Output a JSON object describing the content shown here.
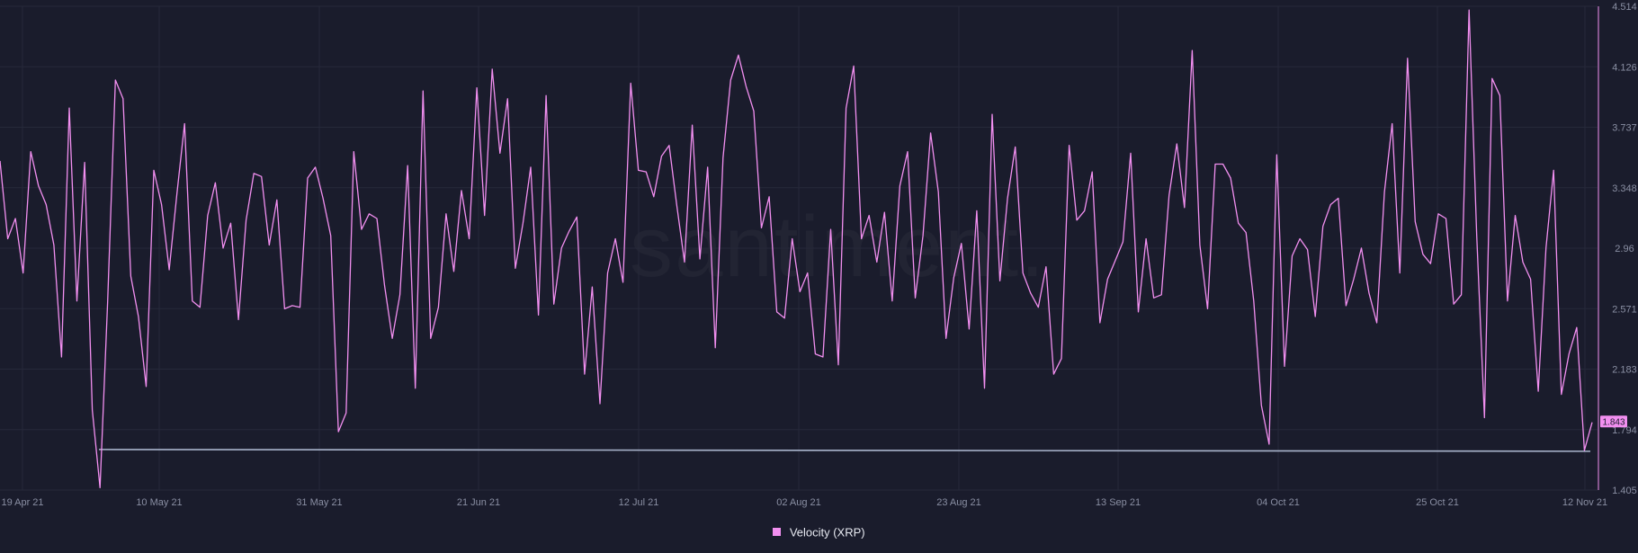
{
  "colors": {
    "background": "#1a1c2c",
    "series": "#f28ff0",
    "baseline": "#a9b4cc",
    "grid": "#26293a",
    "tick_text": "#8a8fa3",
    "badge_bg": "#f28ff0",
    "badge_text": "#1a1c2c"
  },
  "watermark": "santiment.",
  "legend": {
    "label": "Velocity (XRP)"
  },
  "chart_data": {
    "type": "line",
    "x_tick_labels": [
      "19 Apr 21",
      "10 May 21",
      "31 May 21",
      "21 Jun 21",
      "12 Jul 21",
      "02 Aug 21",
      "23 Aug 21",
      "13 Sep 21",
      "04 Oct 21",
      "25 Oct 21",
      "12 Nov 21"
    ],
    "y_tick_labels": [
      "4.514",
      "4.126",
      "3.737",
      "3.348",
      "2.96",
      "2.571",
      "2.183",
      "1.794",
      "1.405"
    ],
    "ylim": [
      1.405,
      4.514
    ],
    "grid": true,
    "legend_position": "bottom-center",
    "last_value_label": "1.843",
    "reference_line": {
      "value": 1.66
    },
    "series": [
      {
        "name": "Velocity (XRP)",
        "values": [
          3.52,
          3.02,
          3.15,
          2.8,
          3.58,
          3.36,
          3.24,
          2.98,
          2.26,
          3.86,
          2.62,
          3.51,
          1.92,
          1.42,
          2.62,
          4.04,
          3.92,
          2.78,
          2.52,
          2.07,
          3.46,
          3.24,
          2.82,
          3.31,
          3.76,
          2.62,
          2.58,
          3.17,
          3.38,
          2.96,
          3.12,
          2.5,
          3.14,
          3.44,
          3.42,
          2.98,
          3.27,
          2.57,
          2.59,
          2.58,
          3.41,
          3.48,
          3.28,
          3.04,
          1.78,
          1.9,
          3.58,
          3.08,
          3.18,
          3.15,
          2.72,
          2.38,
          2.66,
          3.49,
          2.06,
          3.97,
          2.38,
          2.58,
          3.18,
          2.81,
          3.33,
          3.02,
          3.99,
          3.17,
          4.11,
          3.57,
          3.92,
          2.83,
          3.12,
          3.48,
          2.53,
          3.94,
          2.6,
          2.96,
          3.07,
          3.16,
          2.15,
          2.71,
          1.96,
          2.8,
          3.02,
          2.74,
          4.02,
          3.46,
          3.45,
          3.29,
          3.55,
          3.62,
          3.23,
          2.87,
          3.75,
          2.89,
          3.48,
          2.32,
          3.54,
          4.04,
          4.2,
          4.0,
          3.84,
          3.09,
          3.29,
          2.55,
          2.51,
          3.02,
          2.68,
          2.8,
          2.28,
          2.26,
          3.08,
          2.21,
          3.86,
          4.13,
          3.02,
          3.17,
          2.87,
          3.19,
          2.62,
          3.36,
          3.58,
          2.64,
          3.04,
          3.7,
          3.32,
          2.38,
          2.77,
          2.99,
          2.44,
          3.2,
          2.06,
          3.82,
          2.75,
          3.28,
          3.61,
          2.8,
          2.67,
          2.58,
          2.84,
          2.15,
          2.25,
          3.62,
          3.14,
          3.2,
          3.45,
          2.48,
          2.76,
          2.88,
          3.0,
          3.57,
          2.55,
          3.02,
          2.64,
          2.66,
          3.3,
          3.63,
          3.22,
          4.23,
          2.98,
          2.57,
          3.5,
          3.5,
          3.41,
          3.12,
          3.06,
          2.62,
          1.95,
          1.7,
          3.56,
          2.2,
          2.91,
          3.02,
          2.95,
          2.52,
          3.1,
          3.24,
          3.28,
          2.59,
          2.76,
          2.96,
          2.67,
          2.48,
          3.32,
          3.76,
          2.8,
          4.18,
          3.13,
          2.92,
          2.86,
          3.18,
          3.15,
          2.6,
          2.66,
          4.49,
          3.04,
          1.87,
          4.05,
          3.94,
          2.62,
          3.17,
          2.87,
          2.76,
          2.04,
          2.96,
          3.46,
          2.02,
          2.28,
          2.45,
          1.66,
          1.84
        ]
      }
    ]
  }
}
